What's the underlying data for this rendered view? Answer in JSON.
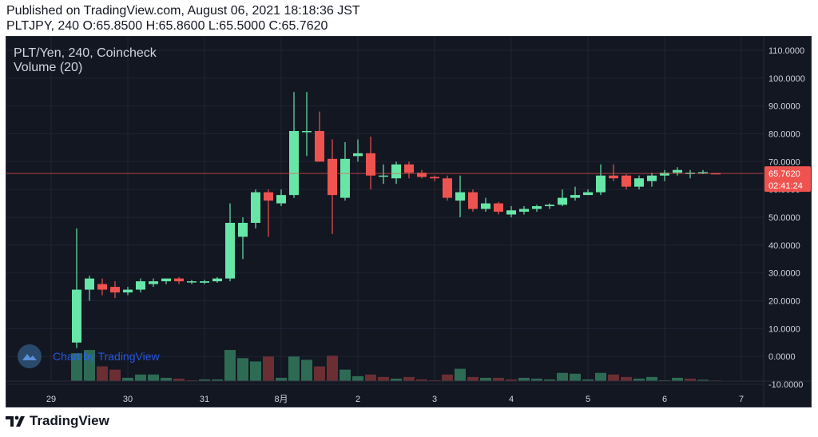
{
  "header": {
    "published": "Published on TradingView.com, August 06, 2021 18:18:36 JST",
    "ohlc": "PLTJPY, 240 O:65.8500 H:65.8600 L:65.5000 C:65.7620"
  },
  "legend": {
    "symbol": "PLT/Yen, 240, Coincheck",
    "volume": "Volume (20)"
  },
  "watermark": {
    "text": "Chart by TradingView"
  },
  "brand": {
    "text": "TradingView"
  },
  "price_label": {
    "value": "65.7620",
    "countdown": "02:41:24",
    "color": "#ef5350"
  },
  "colors": {
    "background": "#131722",
    "up": "#67e6a8",
    "down": "#ef5350",
    "volume_up": "#2e6b55",
    "volume_down": "#6b2e33",
    "grid": "#1f2433",
    "axis_text": "#d1d4dc"
  },
  "chart_data": {
    "type": "candlestick",
    "y_axis": {
      "ticks": [
        "110.0000",
        "100.0000",
        "90.0000",
        "80.0000",
        "70.0000",
        "60.0000",
        "50.0000",
        "40.0000",
        "30.0000",
        "20.0000",
        "10.0000",
        "0.0000",
        "-10.0000"
      ],
      "range": [
        -10,
        112
      ]
    },
    "x_axis": {
      "ticks": [
        {
          "label": "29",
          "t": 0
        },
        {
          "label": "30",
          "t": 6
        },
        {
          "label": "31",
          "t": 12
        },
        {
          "label": "8月",
          "t": 18
        },
        {
          "label": "2",
          "t": 24
        },
        {
          "label": "3",
          "t": 30
        },
        {
          "label": "4",
          "t": 36
        },
        {
          "label": "5",
          "t": 42
        },
        {
          "label": "6",
          "t": 48
        },
        {
          "label": "7",
          "t": 54
        }
      ]
    },
    "last_price": 65.762,
    "candles": [
      {
        "t": 2,
        "o": 5,
        "h": 46,
        "l": 3,
        "c": 24
      },
      {
        "t": 3,
        "o": 24,
        "h": 29,
        "l": 20,
        "c": 28
      },
      {
        "t": 4,
        "o": 26,
        "h": 28,
        "l": 22,
        "c": 24
      },
      {
        "t": 5,
        "o": 25,
        "h": 27,
        "l": 21,
        "c": 23
      },
      {
        "t": 6,
        "o": 23,
        "h": 25,
        "l": 22,
        "c": 24
      },
      {
        "t": 7,
        "o": 24,
        "h": 28,
        "l": 23,
        "c": 27
      },
      {
        "t": 8,
        "o": 26,
        "h": 28,
        "l": 25,
        "c": 27
      },
      {
        "t": 9,
        "o": 27,
        "h": 28,
        "l": 26,
        "c": 28
      },
      {
        "t": 10,
        "o": 28,
        "h": 28.5,
        "l": 26,
        "c": 27
      },
      {
        "t": 11,
        "o": 27,
        "h": 27.5,
        "l": 26,
        "c": 27
      },
      {
        "t": 12,
        "o": 26.5,
        "h": 27.5,
        "l": 26,
        "c": 27
      },
      {
        "t": 13,
        "o": 27,
        "h": 28.5,
        "l": 26.5,
        "c": 28
      },
      {
        "t": 14,
        "o": 28,
        "h": 55,
        "l": 27,
        "c": 48
      },
      {
        "t": 15,
        "o": 43,
        "h": 50,
        "l": 35,
        "c": 48
      },
      {
        "t": 16,
        "o": 48,
        "h": 60,
        "l": 46,
        "c": 59
      },
      {
        "t": 17,
        "o": 59,
        "h": 60,
        "l": 43,
        "c": 56
      },
      {
        "t": 18,
        "o": 55,
        "h": 60,
        "l": 54,
        "c": 58
      },
      {
        "t": 19,
        "o": 58,
        "h": 95,
        "l": 57,
        "c": 81
      },
      {
        "t": 20,
        "o": 81,
        "h": 95,
        "l": 72,
        "c": 81
      },
      {
        "t": 21,
        "o": 81,
        "h": 88,
        "l": 70,
        "c": 70
      },
      {
        "t": 22,
        "o": 71,
        "h": 78,
        "l": 44,
        "c": 58
      },
      {
        "t": 23,
        "o": 57,
        "h": 77,
        "l": 56,
        "c": 71
      },
      {
        "t": 24,
        "o": 72,
        "h": 78,
        "l": 70,
        "c": 73
      },
      {
        "t": 25,
        "o": 73,
        "h": 79,
        "l": 60,
        "c": 65
      },
      {
        "t": 26,
        "o": 65,
        "h": 69,
        "l": 62,
        "c": 65
      },
      {
        "t": 27,
        "o": 64,
        "h": 70,
        "l": 62,
        "c": 69
      },
      {
        "t": 28,
        "o": 69,
        "h": 70,
        "l": 64,
        "c": 66
      },
      {
        "t": 29,
        "o": 66,
        "h": 67,
        "l": 64,
        "c": 64.5
      },
      {
        "t": 30,
        "o": 64.5,
        "h": 65,
        "l": 63,
        "c": 64
      },
      {
        "t": 31,
        "o": 64,
        "h": 65,
        "l": 56,
        "c": 57
      },
      {
        "t": 32,
        "o": 56,
        "h": 65,
        "l": 50,
        "c": 59
      },
      {
        "t": 33,
        "o": 59,
        "h": 60,
        "l": 52,
        "c": 53
      },
      {
        "t": 34,
        "o": 53,
        "h": 57,
        "l": 52,
        "c": 55
      },
      {
        "t": 35,
        "o": 55,
        "h": 55.5,
        "l": 51,
        "c": 52
      },
      {
        "t": 36,
        "o": 51,
        "h": 54,
        "l": 50,
        "c": 52.5
      },
      {
        "t": 37,
        "o": 52,
        "h": 54,
        "l": 51,
        "c": 53
      },
      {
        "t": 38,
        "o": 53,
        "h": 54.5,
        "l": 52,
        "c": 54
      },
      {
        "t": 39,
        "o": 54,
        "h": 55,
        "l": 53,
        "c": 54.5
      },
      {
        "t": 40,
        "o": 54.5,
        "h": 60,
        "l": 54,
        "c": 57
      },
      {
        "t": 41,
        "o": 57,
        "h": 61,
        "l": 56,
        "c": 58
      },
      {
        "t": 42,
        "o": 58,
        "h": 60,
        "l": 58,
        "c": 59
      },
      {
        "t": 43,
        "o": 59,
        "h": 69,
        "l": 58,
        "c": 65
      },
      {
        "t": 44,
        "o": 65,
        "h": 69,
        "l": 63,
        "c": 64
      },
      {
        "t": 45,
        "o": 65,
        "h": 65.5,
        "l": 60,
        "c": 61
      },
      {
        "t": 46,
        "o": 61,
        "h": 65,
        "l": 60,
        "c": 64
      },
      {
        "t": 47,
        "o": 63,
        "h": 66,
        "l": 61,
        "c": 65
      },
      {
        "t": 48,
        "o": 65,
        "h": 67,
        "l": 63,
        "c": 66
      },
      {
        "t": 49,
        "o": 66,
        "h": 68,
        "l": 65,
        "c": 67
      },
      {
        "t": 50,
        "o": 66,
        "h": 67,
        "l": 64,
        "c": 66
      },
      {
        "t": 51,
        "o": 66,
        "h": 67,
        "l": 65.5,
        "c": 66.2
      },
      {
        "t": 52,
        "o": 65.85,
        "h": 65.86,
        "l": 65.5,
        "c": 65.762
      }
    ],
    "volumes": [
      {
        "t": 2,
        "v": 17,
        "dir": "up"
      },
      {
        "t": 3,
        "v": 19,
        "dir": "up"
      },
      {
        "t": 4,
        "v": 9,
        "dir": "down"
      },
      {
        "t": 5,
        "v": 7,
        "dir": "down"
      },
      {
        "t": 6,
        "v": 2,
        "dir": "up"
      },
      {
        "t": 7,
        "v": 4,
        "dir": "up"
      },
      {
        "t": 8,
        "v": 4,
        "dir": "up"
      },
      {
        "t": 9,
        "v": 2,
        "dir": "up"
      },
      {
        "t": 10,
        "v": 1.5,
        "dir": "down"
      },
      {
        "t": 11,
        "v": 0.5,
        "dir": "down"
      },
      {
        "t": 12,
        "v": 1,
        "dir": "up"
      },
      {
        "t": 13,
        "v": 1,
        "dir": "up"
      },
      {
        "t": 14,
        "v": 19,
        "dir": "up"
      },
      {
        "t": 15,
        "v": 14,
        "dir": "up"
      },
      {
        "t": 16,
        "v": 12,
        "dir": "up"
      },
      {
        "t": 17,
        "v": 15,
        "dir": "down"
      },
      {
        "t": 18,
        "v": 2,
        "dir": "up"
      },
      {
        "t": 19,
        "v": 15,
        "dir": "up"
      },
      {
        "t": 20,
        "v": 13,
        "dir": "up"
      },
      {
        "t": 21,
        "v": 9,
        "dir": "down"
      },
      {
        "t": 22,
        "v": 15.5,
        "dir": "down"
      },
      {
        "t": 23,
        "v": 7,
        "dir": "up"
      },
      {
        "t": 24,
        "v": 3,
        "dir": "up"
      },
      {
        "t": 25,
        "v": 4,
        "dir": "down"
      },
      {
        "t": 26,
        "v": 2.5,
        "dir": "down"
      },
      {
        "t": 27,
        "v": 1.5,
        "dir": "up"
      },
      {
        "t": 28,
        "v": 2.5,
        "dir": "down"
      },
      {
        "t": 29,
        "v": 1,
        "dir": "down"
      },
      {
        "t": 30,
        "v": 0.5,
        "dir": "down"
      },
      {
        "t": 31,
        "v": 4,
        "dir": "down"
      },
      {
        "t": 32,
        "v": 7.5,
        "dir": "up"
      },
      {
        "t": 33,
        "v": 2.5,
        "dir": "down"
      },
      {
        "t": 34,
        "v": 2,
        "dir": "up"
      },
      {
        "t": 35,
        "v": 2,
        "dir": "down"
      },
      {
        "t": 36,
        "v": 1,
        "dir": "down"
      },
      {
        "t": 37,
        "v": 2,
        "dir": "up"
      },
      {
        "t": 38,
        "v": 1.5,
        "dir": "up"
      },
      {
        "t": 39,
        "v": 1,
        "dir": "up"
      },
      {
        "t": 40,
        "v": 5,
        "dir": "up"
      },
      {
        "t": 41,
        "v": 4.5,
        "dir": "up"
      },
      {
        "t": 42,
        "v": 1,
        "dir": "up"
      },
      {
        "t": 43,
        "v": 5,
        "dir": "up"
      },
      {
        "t": 44,
        "v": 4,
        "dir": "down"
      },
      {
        "t": 45,
        "v": 2.5,
        "dir": "down"
      },
      {
        "t": 46,
        "v": 1.5,
        "dir": "up"
      },
      {
        "t": 47,
        "v": 2.5,
        "dir": "up"
      },
      {
        "t": 48,
        "v": 0.5,
        "dir": "up"
      },
      {
        "t": 49,
        "v": 2,
        "dir": "up"
      },
      {
        "t": 50,
        "v": 1.5,
        "dir": "down"
      },
      {
        "t": 51,
        "v": 0.8,
        "dir": "up"
      },
      {
        "t": 52,
        "v": 0.4,
        "dir": "down"
      }
    ]
  }
}
